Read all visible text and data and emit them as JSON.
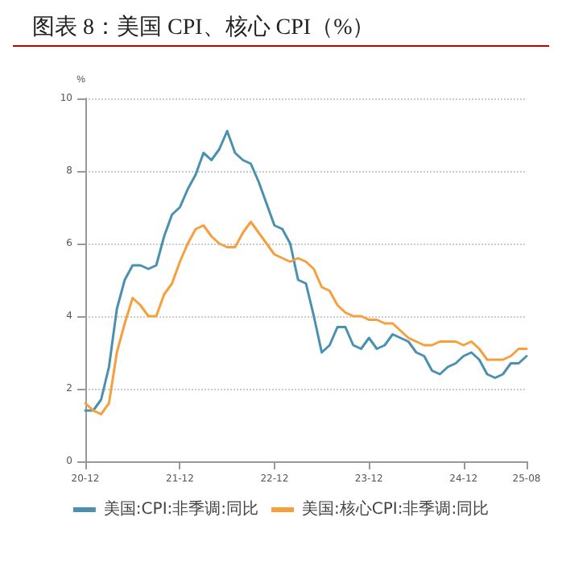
{
  "chart_data": {
    "type": "line",
    "title": "图表 8：美国 CPI、核心 CPI（%）",
    "ylabel": "%",
    "categories": [
      "20-12",
      null,
      null,
      null,
      null,
      null,
      null,
      null,
      null,
      null,
      null,
      null,
      "21-12",
      null,
      null,
      null,
      null,
      null,
      null,
      null,
      null,
      null,
      null,
      null,
      "22-12",
      null,
      null,
      null,
      null,
      null,
      null,
      null,
      null,
      null,
      null,
      null,
      "23-12",
      null,
      null,
      null,
      null,
      null,
      null,
      null,
      null,
      null,
      null,
      null,
      "24-12",
      null,
      null,
      null,
      null,
      null,
      null,
      null,
      "25-08"
    ],
    "series": [
      {
        "name": "美国:CPI:非季调:同比",
        "color": "#4a90b0",
        "values": [
          1.4,
          1.4,
          1.7,
          2.6,
          4.2,
          5.0,
          5.4,
          5.4,
          5.3,
          5.4,
          6.2,
          6.8,
          7.0,
          7.5,
          7.9,
          8.5,
          8.3,
          8.6,
          9.1,
          8.5,
          8.3,
          8.2,
          7.7,
          7.1,
          6.5,
          6.4,
          6.0,
          5.0,
          4.9,
          4.0,
          3.0,
          3.2,
          3.7,
          3.7,
          3.2,
          3.1,
          3.4,
          3.1,
          3.2,
          3.5,
          3.4,
          3.3,
          3.0,
          2.9,
          2.5,
          2.4,
          2.6,
          2.7,
          2.9,
          3.0,
          2.8,
          2.4,
          2.3,
          2.4,
          2.7,
          2.7,
          2.9
        ]
      },
      {
        "name": "美国:核心CPI:非季调:同比",
        "color": "#f5a03c",
        "values": [
          1.6,
          1.4,
          1.3,
          1.6,
          3.0,
          3.8,
          4.5,
          4.3,
          4.0,
          4.0,
          4.6,
          4.9,
          5.5,
          6.0,
          6.4,
          6.5,
          6.2,
          6.0,
          5.9,
          5.9,
          6.3,
          6.6,
          6.3,
          6.0,
          5.7,
          5.6,
          5.5,
          5.6,
          5.5,
          5.3,
          4.8,
          4.7,
          4.3,
          4.1,
          4.0,
          4.0,
          3.9,
          3.9,
          3.8,
          3.8,
          3.6,
          3.4,
          3.3,
          3.2,
          3.2,
          3.3,
          3.3,
          3.3,
          3.2,
          3.3,
          3.1,
          2.8,
          2.8,
          2.8,
          2.9,
          3.1,
          3.1
        ]
      }
    ],
    "ylim": [
      0,
      10
    ],
    "yticks": [
      0,
      2,
      4,
      6,
      8,
      10
    ],
    "grid": "y",
    "legend": "bottom",
    "marker": "none",
    "line_style": "solid"
  }
}
